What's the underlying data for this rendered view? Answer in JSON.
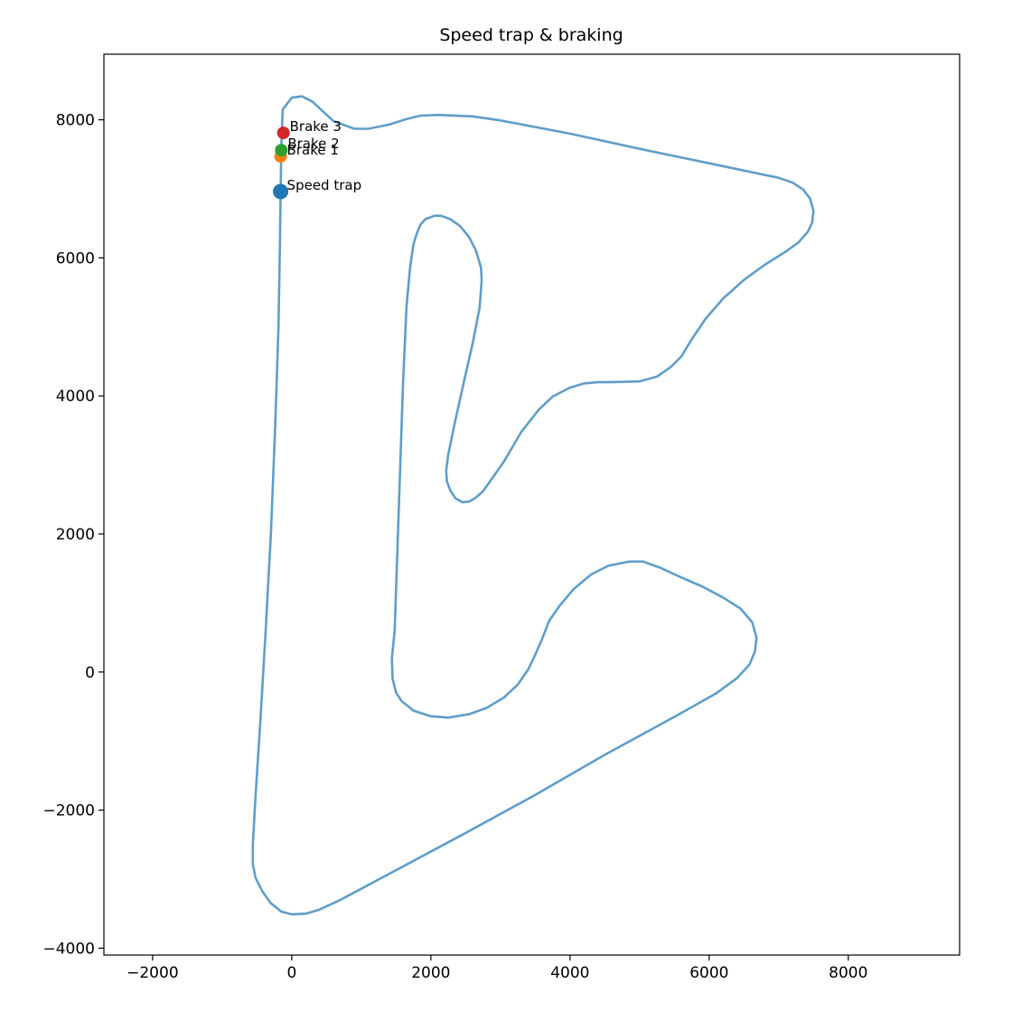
{
  "chart_data": {
    "type": "line",
    "title": "Speed trap & braking",
    "xlabel": "",
    "ylabel": "",
    "xlim": [
      -2700,
      9600
    ],
    "ylim": [
      -4100,
      8950
    ],
    "x_ticks": [
      -2000,
      0,
      2000,
      4000,
      6000,
      8000
    ],
    "y_ticks": [
      -4000,
      -2000,
      0,
      2000,
      4000,
      6000,
      8000
    ],
    "x_tick_labels": [
      "−2000",
      "0",
      "2000",
      "4000",
      "6000",
      "8000"
    ],
    "y_tick_labels": [
      "−4000",
      "−2000",
      "0",
      "2000",
      "4000",
      "6000",
      "8000"
    ],
    "grid": false,
    "series": [
      {
        "color": "#5f9ec9",
        "points": [
          [
            -160,
            6960
          ],
          [
            -150,
            7600
          ],
          [
            -130,
            8150
          ],
          [
            0,
            8320
          ],
          [
            150,
            8340
          ],
          [
            300,
            8260
          ],
          [
            600,
            7980
          ],
          [
            900,
            7870
          ],
          [
            1100,
            7870
          ],
          [
            1400,
            7930
          ],
          [
            1650,
            8010
          ],
          [
            1850,
            8060
          ],
          [
            2100,
            8070
          ],
          [
            2600,
            8050
          ],
          [
            3000,
            7990
          ],
          [
            4000,
            7800
          ],
          [
            5000,
            7580
          ],
          [
            6000,
            7370
          ],
          [
            7000,
            7160
          ],
          [
            7200,
            7090
          ],
          [
            7350,
            6990
          ],
          [
            7450,
            6860
          ],
          [
            7500,
            6680
          ],
          [
            7480,
            6510
          ],
          [
            7420,
            6380
          ],
          [
            7280,
            6220
          ],
          [
            7100,
            6090
          ],
          [
            6800,
            5900
          ],
          [
            6500,
            5680
          ],
          [
            6200,
            5410
          ],
          [
            5950,
            5120
          ],
          [
            5750,
            4820
          ],
          [
            5600,
            4570
          ],
          [
            5450,
            4420
          ],
          [
            5250,
            4280
          ],
          [
            5000,
            4210
          ],
          [
            4600,
            4200
          ],
          [
            4400,
            4200
          ],
          [
            4200,
            4180
          ],
          [
            4000,
            4120
          ],
          [
            3750,
            3990
          ],
          [
            3550,
            3800
          ],
          [
            3300,
            3480
          ],
          [
            3050,
            3050
          ],
          [
            2850,
            2760
          ],
          [
            2750,
            2620
          ],
          [
            2650,
            2530
          ],
          [
            2550,
            2470
          ],
          [
            2450,
            2460
          ],
          [
            2350,
            2520
          ],
          [
            2280,
            2630
          ],
          [
            2230,
            2760
          ],
          [
            2220,
            2920
          ],
          [
            2250,
            3150
          ],
          [
            2350,
            3640
          ],
          [
            2500,
            4320
          ],
          [
            2600,
            4760
          ],
          [
            2700,
            5280
          ],
          [
            2730,
            5680
          ],
          [
            2720,
            5860
          ],
          [
            2650,
            6100
          ],
          [
            2550,
            6300
          ],
          [
            2420,
            6460
          ],
          [
            2280,
            6560
          ],
          [
            2150,
            6610
          ],
          [
            2050,
            6610
          ],
          [
            1920,
            6560
          ],
          [
            1850,
            6480
          ],
          [
            1800,
            6360
          ],
          [
            1750,
            6200
          ],
          [
            1700,
            5850
          ],
          [
            1650,
            5300
          ],
          [
            1600,
            4200
          ],
          [
            1560,
            3000
          ],
          [
            1520,
            1800
          ],
          [
            1480,
            600
          ],
          [
            1440,
            200
          ],
          [
            1450,
            -100
          ],
          [
            1500,
            -300
          ],
          [
            1580,
            -420
          ],
          [
            1750,
            -560
          ],
          [
            2000,
            -640
          ],
          [
            2250,
            -660
          ],
          [
            2550,
            -610
          ],
          [
            2800,
            -520
          ],
          [
            3050,
            -370
          ],
          [
            3250,
            -180
          ],
          [
            3400,
            40
          ],
          [
            3500,
            250
          ],
          [
            3600,
            480
          ],
          [
            3700,
            740
          ],
          [
            3850,
            960
          ],
          [
            4050,
            1200
          ],
          [
            4300,
            1410
          ],
          [
            4550,
            1540
          ],
          [
            4850,
            1600
          ],
          [
            5050,
            1600
          ],
          [
            5300,
            1510
          ],
          [
            5600,
            1370
          ],
          [
            5900,
            1240
          ],
          [
            6200,
            1080
          ],
          [
            6450,
            920
          ],
          [
            6620,
            720
          ],
          [
            6680,
            500
          ],
          [
            6660,
            300
          ],
          [
            6580,
            110
          ],
          [
            6400,
            -90
          ],
          [
            6100,
            -310
          ],
          [
            5500,
            -650
          ],
          [
            4500,
            -1200
          ],
          [
            3500,
            -1780
          ],
          [
            2500,
            -2330
          ],
          [
            1500,
            -2870
          ],
          [
            700,
            -3300
          ],
          [
            400,
            -3440
          ],
          [
            200,
            -3500
          ],
          [
            0,
            -3510
          ],
          [
            -150,
            -3470
          ],
          [
            -300,
            -3350
          ],
          [
            -420,
            -3180
          ],
          [
            -520,
            -2980
          ],
          [
            -560,
            -2780
          ],
          [
            -560,
            -2500
          ],
          [
            -520,
            -1800
          ],
          [
            -450,
            -700
          ],
          [
            -380,
            500
          ],
          [
            -300,
            2000
          ],
          [
            -240,
            3500
          ],
          [
            -190,
            5000
          ],
          [
            -170,
            6200
          ],
          [
            -160,
            6960
          ]
        ]
      }
    ],
    "markers": [
      {
        "label": "Speed trap",
        "x": -160,
        "y": 6960,
        "color": "#1f77b4",
        "big": true
      },
      {
        "label": "Brake 1",
        "x": -160,
        "y": 7470,
        "color": "#ff7f0e",
        "big": false
      },
      {
        "label": "Brake 2",
        "x": -150,
        "y": 7560,
        "color": "#2ca02c",
        "big": false
      },
      {
        "label": "Brake 3",
        "x": -120,
        "y": 7810,
        "color": "#d62728",
        "big": false
      }
    ]
  }
}
